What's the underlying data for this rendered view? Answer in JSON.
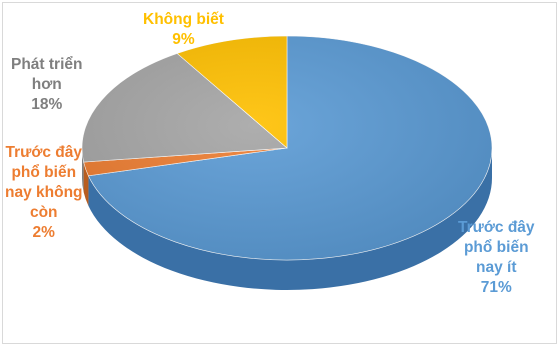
{
  "chart_data": {
    "type": "pie",
    "style": "3d",
    "slices": [
      {
        "name": "Trước đây phổ biến nay ít",
        "value": 71,
        "value_label": "71%",
        "color": "#5b9bd5",
        "side_color": "#3a70a6",
        "label_color": "#5b9bd5",
        "label_lines": [
          "Trước đây",
          "phổ biến",
          "nay ít"
        ]
      },
      {
        "name": "Trước đây phổ biến nay không còn",
        "value": 2,
        "value_label": "2%",
        "color": "#ed7d31",
        "side_color": "#b85d1f",
        "label_color": "#ed7d31",
        "label_lines": [
          "Trước đây",
          "phổ biến",
          "nay không",
          "còn"
        ]
      },
      {
        "name": "Phát triển hơn",
        "value": 18,
        "value_label": "18%",
        "color": "#a5a5a5",
        "side_color": "#7f7f7f",
        "label_color": "#7f7f7f",
        "label_lines": [
          "Phát triển",
          "hơn"
        ]
      },
      {
        "name": "Không biết",
        "value": 9,
        "value_label": "9%",
        "color": "#ffc000",
        "side_color": "#c79500",
        "label_color": "#ffc000",
        "label_lines": [
          "Không biết"
        ]
      }
    ],
    "legend": "none",
    "title": ""
  }
}
